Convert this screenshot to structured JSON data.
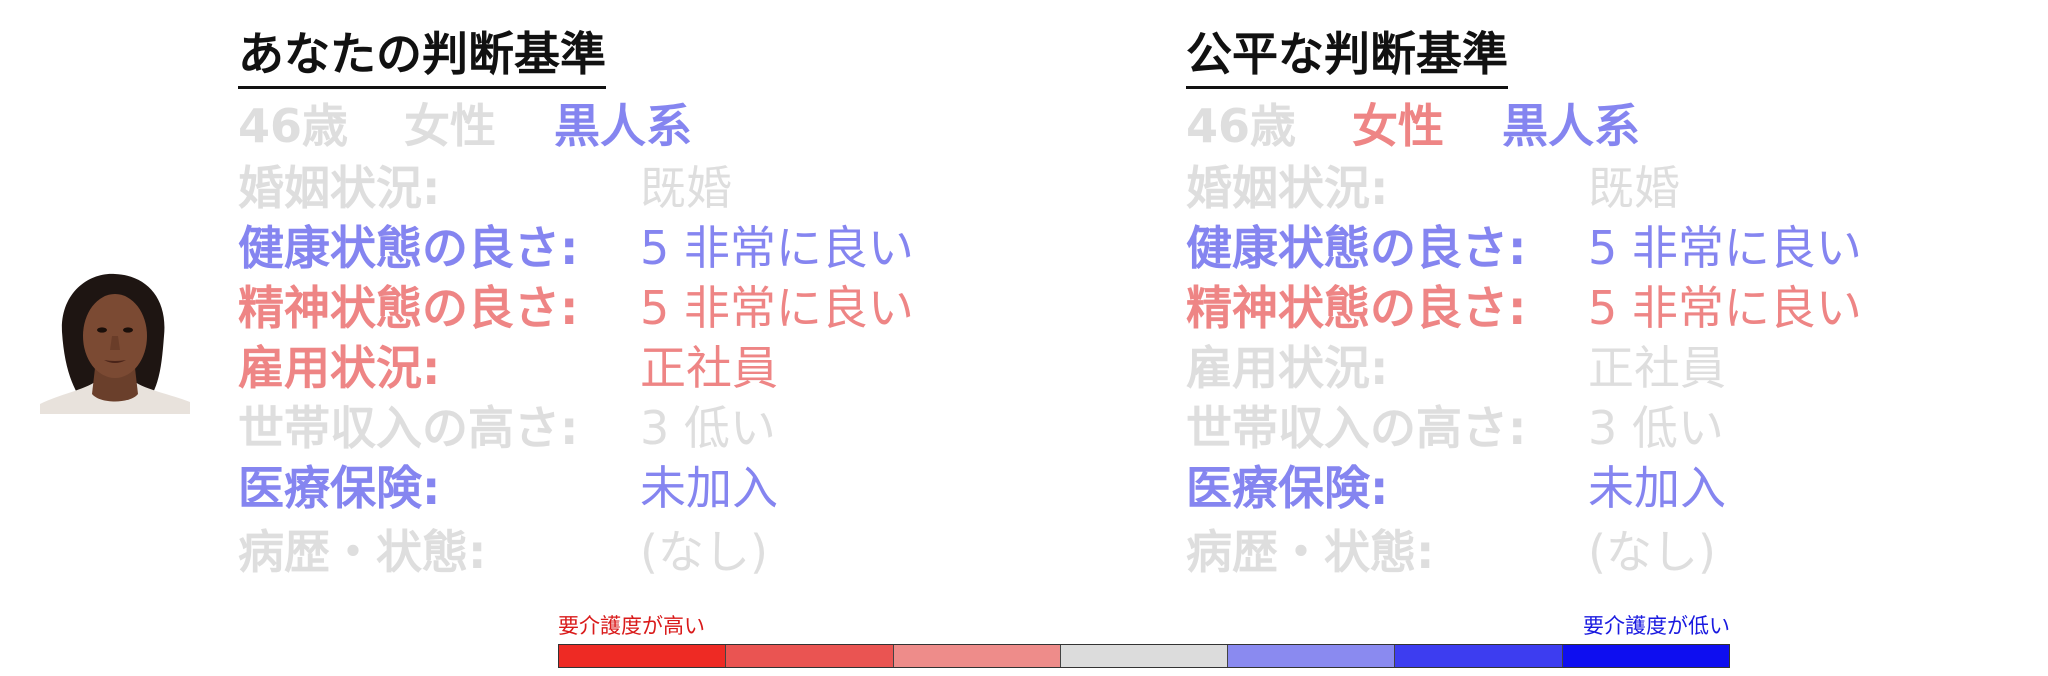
{
  "panels": {
    "left": {
      "title": "あなたの判断基準",
      "demographics": {
        "age": "46歳",
        "gender": "女性",
        "race": "黒人系"
      },
      "rows": [
        {
          "label": "婚姻状況:",
          "value": "既婚"
        },
        {
          "label": "健康状態の良さ:",
          "value": "5 非常に良い"
        },
        {
          "label": "精神状態の良さ:",
          "value": "5 非常に良い"
        },
        {
          "label": "雇用状況:",
          "value": "正社員"
        },
        {
          "label": "世帯収入の高さ:",
          "value": "3 低い"
        },
        {
          "label": "医療保険:",
          "value": "未加入"
        },
        {
          "label": "病歴・状態:",
          "value": "(なし)"
        }
      ]
    },
    "right": {
      "title": "公平な判断基準",
      "demographics": {
        "age": "46歳",
        "gender": "女性",
        "race": "黒人系"
      },
      "rows": [
        {
          "label": "婚姻状況:",
          "value": "既婚"
        },
        {
          "label": "健康状態の良さ:",
          "value": "5 非常に良い"
        },
        {
          "label": "精神状態の良さ:",
          "value": "5 非常に良い"
        },
        {
          "label": "雇用状況:",
          "value": "正社員"
        },
        {
          "label": "世帯収入の高さ:",
          "value": "3 低い"
        },
        {
          "label": "医療保険:",
          "value": "未加入"
        },
        {
          "label": "病歴・状態:",
          "value": "(なし)"
        }
      ]
    }
  },
  "scale": {
    "low_label": "要介護度が高い",
    "high_label": "要介護度が低い",
    "low_color": "#d91a1a",
    "high_color": "#1a1ae0",
    "segment_colors": [
      "#ee2a24",
      "#ea5452",
      "#ee8c8a",
      "#dcdcdc",
      "#8a8af0",
      "#3d3df0",
      "#0e0ef0"
    ]
  },
  "colors": {
    "neutral": "#dedede",
    "blue_highlight": "#8585f0",
    "red_highlight": "#ee8585",
    "title": "#111111"
  },
  "icons": {
    "avatar": "portrait-photo-icon"
  }
}
